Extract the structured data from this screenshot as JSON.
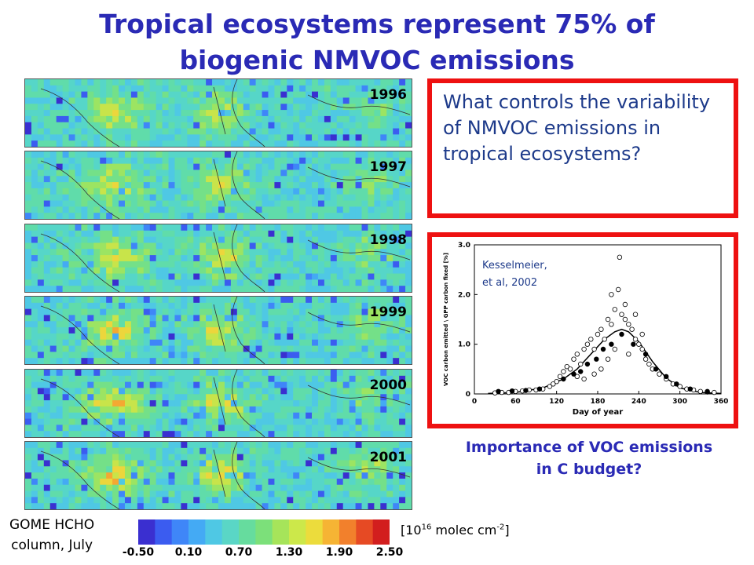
{
  "title": {
    "line1": "Tropical ecosystems represent 75% of",
    "line2": "biogenic NMVOC emissions"
  },
  "maps": [
    {
      "year": "1996"
    },
    {
      "year": "1997"
    },
    {
      "year": "1998"
    },
    {
      "year": "1999"
    },
    {
      "year": "2000"
    },
    {
      "year": "2001"
    }
  ],
  "question": "What controls the variability of NMVOC emissions in tropical ecosystems?",
  "importance": {
    "line1": "Importance of VOC emissions",
    "line2": "in C budget?"
  },
  "gome_label": {
    "line1": "GOME HCHO",
    "line2": "column, July"
  },
  "colorbar": {
    "ticks": [
      "-0.50",
      "0.10",
      "0.70",
      "1.30",
      "1.90",
      "2.50"
    ],
    "unit_prefix": "[10",
    "unit_exp": "16",
    "unit_suffix": " molec cm",
    "unit_exp2": "-2",
    "unit_close": "]",
    "colors": [
      "#3a2fd0",
      "#3b5cf0",
      "#3f86f8",
      "#44aaf4",
      "#4fc8e4",
      "#5ad6c6",
      "#66dc9e",
      "#7ce07a",
      "#a6e45a",
      "#cce84a",
      "#ecdc3c",
      "#f6b434",
      "#f2802c",
      "#e64a24",
      "#d21e1e"
    ]
  },
  "chart_data": {
    "type": "scatter",
    "annotation": "Kesselmeier, et al, 2002",
    "xlabel": "Day of year",
    "ylabel": "VOC carbon emitted \\ GPP carbon fixed [%]",
    "xlim": [
      0,
      360
    ],
    "ylim": [
      0,
      3.0
    ],
    "xticks": [
      "0",
      "60",
      "120",
      "180",
      "240",
      "300",
      "360"
    ],
    "yticks": [
      "0",
      "1.0",
      "2.0",
      "3.0"
    ],
    "series": [
      {
        "marker": "open",
        "points": [
          [
            30,
            0.02
          ],
          [
            40,
            0.03
          ],
          [
            50,
            0.03
          ],
          [
            60,
            0.05
          ],
          [
            70,
            0.06
          ],
          [
            80,
            0.08
          ],
          [
            90,
            0.08
          ],
          [
            100,
            0.1
          ],
          [
            110,
            0.15
          ],
          [
            115,
            0.2
          ],
          [
            120,
            0.25
          ],
          [
            125,
            0.35
          ],
          [
            130,
            0.45
          ],
          [
            135,
            0.55
          ],
          [
            140,
            0.5
          ],
          [
            145,
            0.7
          ],
          [
            150,
            0.8
          ],
          [
            155,
            0.6
          ],
          [
            160,
            0.9
          ],
          [
            165,
            1.0
          ],
          [
            170,
            1.1
          ],
          [
            175,
            0.9
          ],
          [
            180,
            1.2
          ],
          [
            185,
            1.3
          ],
          [
            190,
            1.1
          ],
          [
            195,
            1.5
          ],
          [
            200,
            1.4
          ],
          [
            205,
            1.7
          ],
          [
            210,
            2.1
          ],
          [
            212,
            2.75
          ],
          [
            215,
            1.6
          ],
          [
            220,
            1.5
          ],
          [
            225,
            1.4
          ],
          [
            230,
            1.3
          ],
          [
            235,
            1.1
          ],
          [
            240,
            1.0
          ],
          [
            245,
            0.9
          ],
          [
            250,
            0.7
          ],
          [
            255,
            0.6
          ],
          [
            260,
            0.5
          ],
          [
            270,
            0.4
          ],
          [
            280,
            0.3
          ],
          [
            290,
            0.2
          ],
          [
            300,
            0.15
          ],
          [
            310,
            0.1
          ],
          [
            320,
            0.08
          ],
          [
            330,
            0.05
          ],
          [
            340,
            0.04
          ],
          [
            350,
            0.03
          ],
          [
            195,
            0.7
          ],
          [
            205,
            0.9
          ],
          [
            225,
            0.8
          ],
          [
            235,
            1.6
          ],
          [
            245,
            1.2
          ],
          [
            185,
            0.5
          ],
          [
            175,
            0.4
          ],
          [
            160,
            0.3
          ],
          [
            150,
            0.35
          ],
          [
            200,
            2.0
          ],
          [
            220,
            1.8
          ]
        ]
      },
      {
        "marker": "filled",
        "points": [
          [
            35,
            0.05
          ],
          [
            55,
            0.06
          ],
          [
            75,
            0.07
          ],
          [
            95,
            0.1
          ],
          [
            130,
            0.3
          ],
          [
            145,
            0.4
          ],
          [
            155,
            0.45
          ],
          [
            165,
            0.6
          ],
          [
            178,
            0.7
          ],
          [
            188,
            0.9
          ],
          [
            200,
            1.0
          ],
          [
            215,
            1.2
          ],
          [
            232,
            1.0
          ],
          [
            250,
            0.8
          ],
          [
            265,
            0.5
          ],
          [
            280,
            0.35
          ],
          [
            295,
            0.2
          ],
          [
            315,
            0.1
          ],
          [
            340,
            0.05
          ]
        ]
      }
    ],
    "fit_curve": {
      "x": [
        20,
        60,
        100,
        130,
        150,
        170,
        190,
        205,
        215,
        225,
        240,
        260,
        280,
        300,
        330,
        360
      ],
      "y": [
        0.01,
        0.03,
        0.12,
        0.3,
        0.5,
        0.8,
        1.1,
        1.25,
        1.3,
        1.25,
        1.05,
        0.65,
        0.32,
        0.12,
        0.03,
        0.01
      ]
    }
  }
}
